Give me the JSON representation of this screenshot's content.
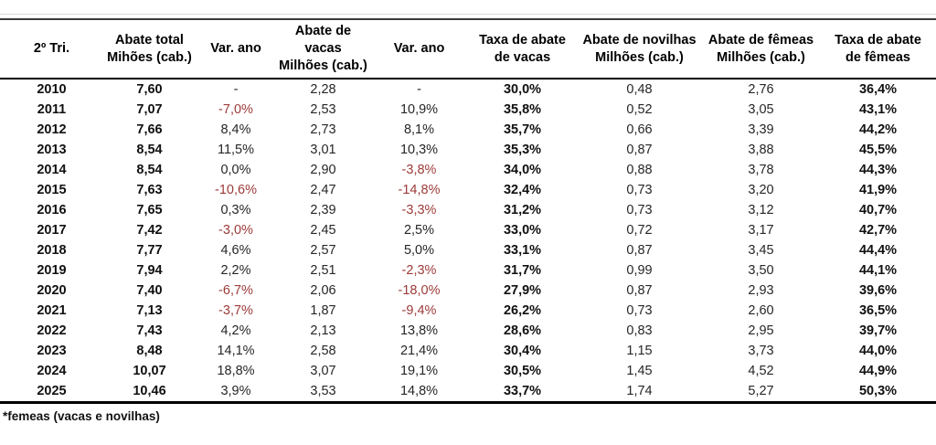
{
  "chart_data": {
    "type": "table",
    "title": "",
    "columns": [
      {
        "line1": "2º Tri.",
        "line2": ""
      },
      {
        "line1": "Abate total",
        "line2": "Mihões (cab.)"
      },
      {
        "line1": "Var. ano",
        "line2": ""
      },
      {
        "line1": "Abate de vacas",
        "line2": "Milhões (cab.)"
      },
      {
        "line1": "Var. ano",
        "line2": ""
      },
      {
        "line1": "Taxa de abate",
        "line2": "de vacas"
      },
      {
        "line1": "Abate de novilhas",
        "line2": "Milhões (cab.)"
      },
      {
        "line1": "Abate de fêmeas",
        "line2": "Milhões (cab.)"
      },
      {
        "line1": "Taxa de abate",
        "line2": "de fêmeas"
      }
    ],
    "rows": [
      {
        "year": "2010",
        "total": "7,60",
        "var_total": "-",
        "vacas": "2,28",
        "var_vacas": "-",
        "taxa_vacas": "30,0%",
        "novilhas": "0,48",
        "femeas": "2,76",
        "taxa_femeas": "36,4%"
      },
      {
        "year": "2011",
        "total": "7,07",
        "var_total": "-7,0%",
        "vacas": "2,53",
        "var_vacas": "10,9%",
        "taxa_vacas": "35,8%",
        "novilhas": "0,52",
        "femeas": "3,05",
        "taxa_femeas": "43,1%"
      },
      {
        "year": "2012",
        "total": "7,66",
        "var_total": "8,4%",
        "vacas": "2,73",
        "var_vacas": "8,1%",
        "taxa_vacas": "35,7%",
        "novilhas": "0,66",
        "femeas": "3,39",
        "taxa_femeas": "44,2%"
      },
      {
        "year": "2013",
        "total": "8,54",
        "var_total": "11,5%",
        "vacas": "3,01",
        "var_vacas": "10,3%",
        "taxa_vacas": "35,3%",
        "novilhas": "0,87",
        "femeas": "3,88",
        "taxa_femeas": "45,5%"
      },
      {
        "year": "2014",
        "total": "8,54",
        "var_total": "0,0%",
        "vacas": "2,90",
        "var_vacas": "-3,8%",
        "taxa_vacas": "34,0%",
        "novilhas": "0,88",
        "femeas": "3,78",
        "taxa_femeas": "44,3%"
      },
      {
        "year": "2015",
        "total": "7,63",
        "var_total": "-10,6%",
        "vacas": "2,47",
        "var_vacas": "-14,8%",
        "taxa_vacas": "32,4%",
        "novilhas": "0,73",
        "femeas": "3,20",
        "taxa_femeas": "41,9%"
      },
      {
        "year": "2016",
        "total": "7,65",
        "var_total": "0,3%",
        "vacas": "2,39",
        "var_vacas": "-3,3%",
        "taxa_vacas": "31,2%",
        "novilhas": "0,73",
        "femeas": "3,12",
        "taxa_femeas": "40,7%"
      },
      {
        "year": "2017",
        "total": "7,42",
        "var_total": "-3,0%",
        "vacas": "2,45",
        "var_vacas": "2,5%",
        "taxa_vacas": "33,0%",
        "novilhas": "0,72",
        "femeas": "3,17",
        "taxa_femeas": "42,7%"
      },
      {
        "year": "2018",
        "total": "7,77",
        "var_total": "4,6%",
        "vacas": "2,57",
        "var_vacas": "5,0%",
        "taxa_vacas": "33,1%",
        "novilhas": "0,87",
        "femeas": "3,45",
        "taxa_femeas": "44,4%"
      },
      {
        "year": "2019",
        "total": "7,94",
        "var_total": "2,2%",
        "vacas": "2,51",
        "var_vacas": "-2,3%",
        "taxa_vacas": "31,7%",
        "novilhas": "0,99",
        "femeas": "3,50",
        "taxa_femeas": "44,1%"
      },
      {
        "year": "2020",
        "total": "7,40",
        "var_total": "-6,7%",
        "vacas": "2,06",
        "var_vacas": "-18,0%",
        "taxa_vacas": "27,9%",
        "novilhas": "0,87",
        "femeas": "2,93",
        "taxa_femeas": "39,6%"
      },
      {
        "year": "2021",
        "total": "7,13",
        "var_total": "-3,7%",
        "vacas": "1,87",
        "var_vacas": "-9,4%",
        "taxa_vacas": "26,2%",
        "novilhas": "0,73",
        "femeas": "2,60",
        "taxa_femeas": "36,5%"
      },
      {
        "year": "2022",
        "total": "7,43",
        "var_total": "4,2%",
        "vacas": "2,13",
        "var_vacas": "13,8%",
        "taxa_vacas": "28,6%",
        "novilhas": "0,83",
        "femeas": "2,95",
        "taxa_femeas": "39,7%"
      },
      {
        "year": "2023",
        "total": "8,48",
        "var_total": "14,1%",
        "vacas": "2,58",
        "var_vacas": "21,4%",
        "taxa_vacas": "30,4%",
        "novilhas": "1,15",
        "femeas": "3,73",
        "taxa_femeas": "44,0%"
      },
      {
        "year": "2024",
        "total": "10,07",
        "var_total": "18,8%",
        "vacas": "3,07",
        "var_vacas": "19,1%",
        "taxa_vacas": "30,5%",
        "novilhas": "1,45",
        "femeas": "4,52",
        "taxa_femeas": "44,9%"
      },
      {
        "year": "2025",
        "total": "10,46",
        "var_total": "3,9%",
        "vacas": "3,53",
        "var_vacas": "14,8%",
        "taxa_vacas": "33,7%",
        "novilhas": "1,74",
        "femeas": "5,27",
        "taxa_femeas": "50,3%"
      }
    ],
    "footnote": "*femeas (vacas e novilhas)",
    "colors": {
      "negative_value": "#9C3B39",
      "text": "#262626",
      "bold_text": "#111111",
      "header_underline": "#000000",
      "top_rule_light": "#d9d9d9"
    }
  }
}
